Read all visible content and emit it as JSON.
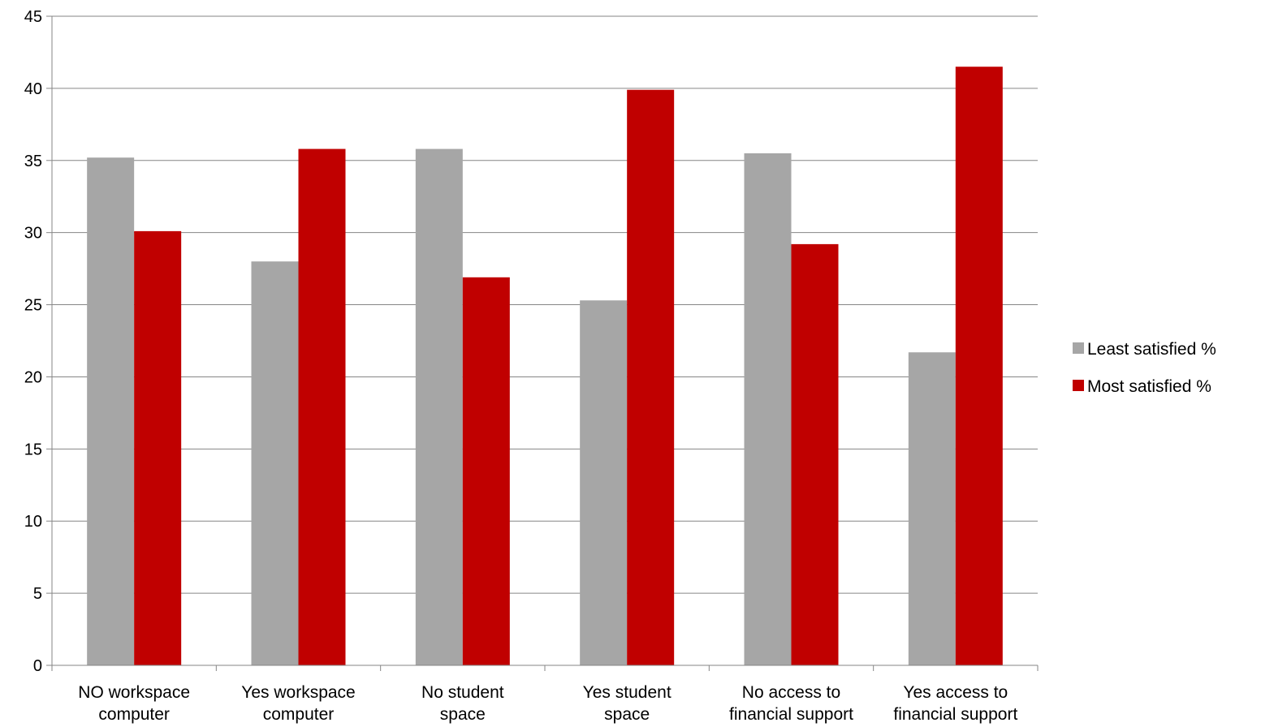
{
  "chart_data": {
    "type": "bar",
    "categories": [
      [
        "NO workspace",
        "computer"
      ],
      [
        "Yes workspace",
        "computer"
      ],
      [
        "No student",
        "space"
      ],
      [
        "Yes student",
        "space"
      ],
      [
        "No access to",
        "financial support"
      ],
      [
        "Yes access to",
        "financial support"
      ]
    ],
    "series": [
      {
        "name": "Least satisfied %",
        "color": "#a6a6a6",
        "values": [
          35.2,
          28.0,
          35.8,
          25.3,
          35.5,
          21.7
        ]
      },
      {
        "name": "Most satisfied %",
        "color": "#c00000",
        "values": [
          30.1,
          35.8,
          26.9,
          39.9,
          29.2,
          41.5
        ]
      }
    ],
    "ylim": [
      0,
      45
    ],
    "yticks": [
      0,
      5,
      10,
      15,
      20,
      25,
      30,
      35,
      40,
      45
    ],
    "grid": true,
    "legend": "right",
    "title": "",
    "xlabel": "",
    "ylabel": ""
  }
}
